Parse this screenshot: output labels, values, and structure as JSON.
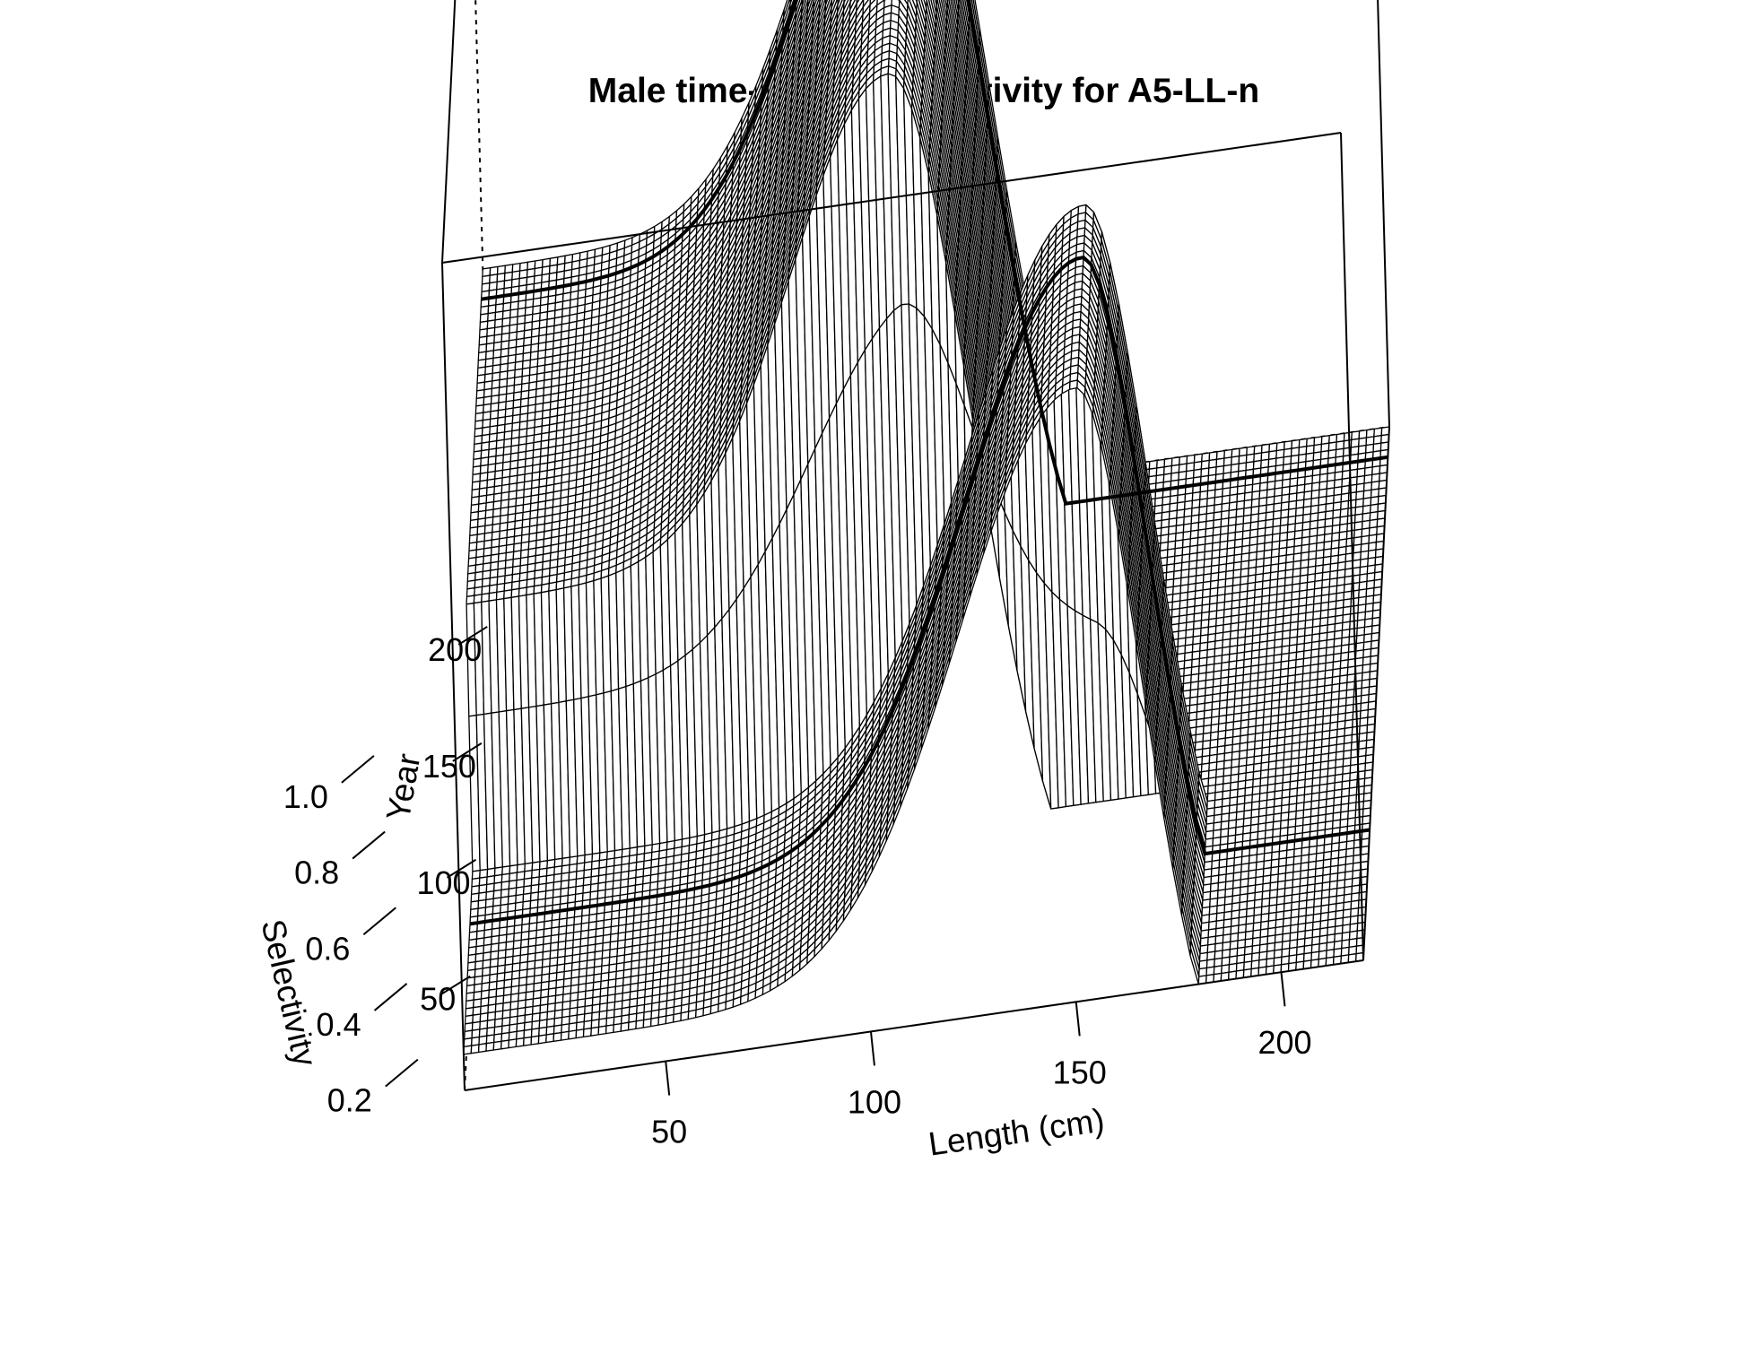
{
  "chart_data": {
    "type": "surface",
    "title": "Male time-varying selectivity for A5-LL-n",
    "xlabel": "Length (cm)",
    "ylabel": "Year",
    "zlabel": "Selectivity",
    "x_ticks": [
      "50",
      "100",
      "150",
      "200"
    ],
    "y_ticks": [
      "50",
      "100",
      "150",
      "200"
    ],
    "z_ticks": [
      "0.2",
      "0.4",
      "0.6",
      "0.8",
      "1.0"
    ],
    "xlim": [
      1,
      220
    ],
    "ylim": [
      1,
      230
    ],
    "zlim": [
      0.16,
      1.08
    ],
    "surface": {
      "line_color": "#000000",
      "face_color": "#ffffff",
      "periods": [
        {
          "years": [
            1,
            80
          ],
          "baseline": 0.2,
          "peak_length": 154,
          "peak_value": 0.84,
          "ascending_sd": 30,
          "descending_sd": 14
        },
        {
          "years": [
            85,
            230
          ],
          "baseline": 0.48,
          "peak_length": 107,
          "peak_value": 1.0,
          "ascending_sd": 25,
          "descending_sd": 18
        }
      ],
      "highlighted_years": [
        57,
        217
      ]
    }
  }
}
